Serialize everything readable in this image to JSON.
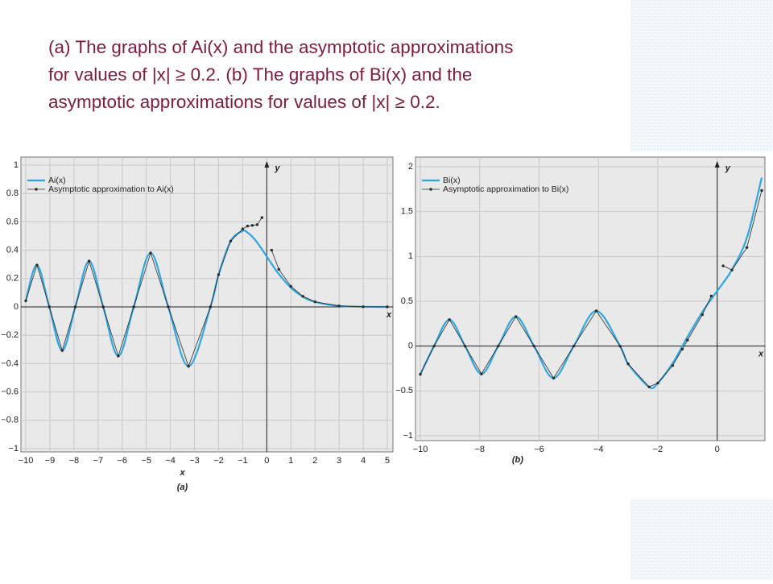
{
  "caption_lines": [
    "(a) The graphs of Ai(x) and the asymptotic approximations",
    "for values of |x| ≥ 0.2. (b) The graphs of Bi(x) and the",
    "asymptotic approximations  for values of |x| ≥ 0.2."
  ],
  "chart_data": [
    {
      "type": "line",
      "panel_label": "(a)",
      "xlabel": "x",
      "axis_names": {
        "x": "x",
        "y": "y"
      },
      "legend": "upper left",
      "grid": true,
      "xlim": [
        -10,
        5
      ],
      "ylim": [
        -1,
        1
      ],
      "xticks": [
        {
          "value": -10,
          "label": "−10"
        },
        {
          "value": -9,
          "label": "−9"
        },
        {
          "value": -8,
          "label": "−8"
        },
        {
          "value": -7,
          "label": "−7"
        },
        {
          "value": -6,
          "label": "−6"
        },
        {
          "value": -5,
          "label": "−5"
        },
        {
          "value": -4,
          "label": "−4"
        },
        {
          "value": -3,
          "label": "−3"
        },
        {
          "value": -2,
          "label": "−2"
        },
        {
          "value": -1,
          "label": "−1"
        },
        0,
        1,
        2,
        3,
        4,
        5
      ],
      "yticks": [
        {
          "value": -1,
          "label": "−1"
        },
        {
          "value": -0.8,
          "label": "−0.8"
        },
        {
          "value": -0.6,
          "label": "−0.6"
        },
        {
          "value": -0.4,
          "label": "−0.4"
        },
        {
          "value": -0.2,
          "label": "−0.2"
        },
        0,
        0.2,
        0.4,
        0.6,
        0.8,
        1
      ],
      "x": [
        -10,
        -9.535,
        -9.023,
        -8.488,
        -7.944,
        -7.372,
        -6.787,
        -6.163,
        -5.521,
        -4.82,
        -4.088,
        -3.248,
        -2.338,
        -2,
        -1.5,
        -1,
        -0.8,
        -0.6,
        -0.4,
        -0.2,
        0,
        0.2,
        0.5,
        1,
        1.5,
        2,
        3,
        4,
        5
      ],
      "series": [
        {
          "name": "Ai(x)",
          "color": "#2ea6de",
          "style": "smooth",
          "values": [
            0.0424,
            0.2953,
            0,
            -0.3078,
            0,
            0.3234,
            0,
            -0.3463,
            0,
            0.3804,
            0,
            -0.419,
            0,
            0.2274,
            0.4642,
            0.5356,
            0.5235,
            0.4948,
            0.4542,
            0.4063,
            0.355,
            0.3037,
            0.2317,
            0.1353,
            0.0717,
            0.0349,
            0.0066,
            0.001,
            0.0001
          ]
        },
        {
          "name": "Asymptotic approximation to Ai(x)",
          "color": "#2b2b2b",
          "style": "dots",
          "values": [
            0.0424,
            0.2953,
            0,
            -0.3078,
            0,
            0.3234,
            0,
            -0.3463,
            0,
            0.3804,
            0,
            -0.419,
            0,
            0.2274,
            0.4642,
            0.55,
            0.57,
            0.575,
            0.58,
            0.63,
            null,
            0.4,
            0.265,
            0.1448,
            0.0749,
            0.036,
            0.0067,
            0.001,
            0.0001
          ]
        }
      ]
    },
    {
      "type": "line",
      "panel_label": "(b)",
      "axis_names": {
        "x": "x",
        "y": "y"
      },
      "legend": "upper left",
      "grid": true,
      "xlim": [
        -10,
        1.5
      ],
      "ylim": [
        -1,
        2
      ],
      "xticks": [
        {
          "value": -10,
          "label": "−10"
        },
        {
          "value": -8,
          "label": "−8"
        },
        {
          "value": -6,
          "label": "−6"
        },
        {
          "value": -4,
          "label": "−4"
        },
        {
          "value": -2,
          "label": "−2"
        },
        0
      ],
      "yticks": [
        {
          "value": -1,
          "label": "−1"
        },
        {
          "value": -0.5,
          "label": "−0.5"
        },
        0,
        0.5,
        1,
        1.5,
        2
      ],
      "x": [
        -10,
        -9.538,
        -9.02,
        -8.492,
        -7.94,
        -7.377,
        -6.781,
        -6.17,
        -5.512,
        -4.831,
        -4.073,
        -3.271,
        -3,
        -2.295,
        -2,
        -1.5,
        -1.174,
        -1,
        -0.5,
        -0.2,
        0,
        0.2,
        0.5,
        1,
        1.5
      ],
      "series": [
        {
          "name": "Bi(x)",
          "color": "#2ea6de",
          "style": "smooth",
          "values": [
            -0.3147,
            0,
            0.2951,
            0,
            -0.3103,
            0,
            0.329,
            0,
            -0.3568,
            0,
            0.3922,
            0,
            -0.1982,
            -0.4545,
            -0.4123,
            -0.1918,
            0,
            0.104,
            0.3804,
            0.524,
            0.6149,
            0.7054,
            0.8543,
            1.2074,
            1.8789
          ]
        },
        {
          "name": "Asymptotic approximation to Bi(x)",
          "color": "#2b2b2b",
          "style": "dots",
          "values": [
            -0.3147,
            0,
            0.2951,
            0,
            -0.3103,
            0,
            0.329,
            0,
            -0.3568,
            0,
            0.3922,
            0,
            -0.1982,
            -0.4545,
            -0.4123,
            -0.2168,
            -0.034,
            0.0667,
            0.3505,
            0.559,
            null,
            0.895,
            0.849,
            1.099,
            1.735
          ]
        }
      ]
    }
  ]
}
